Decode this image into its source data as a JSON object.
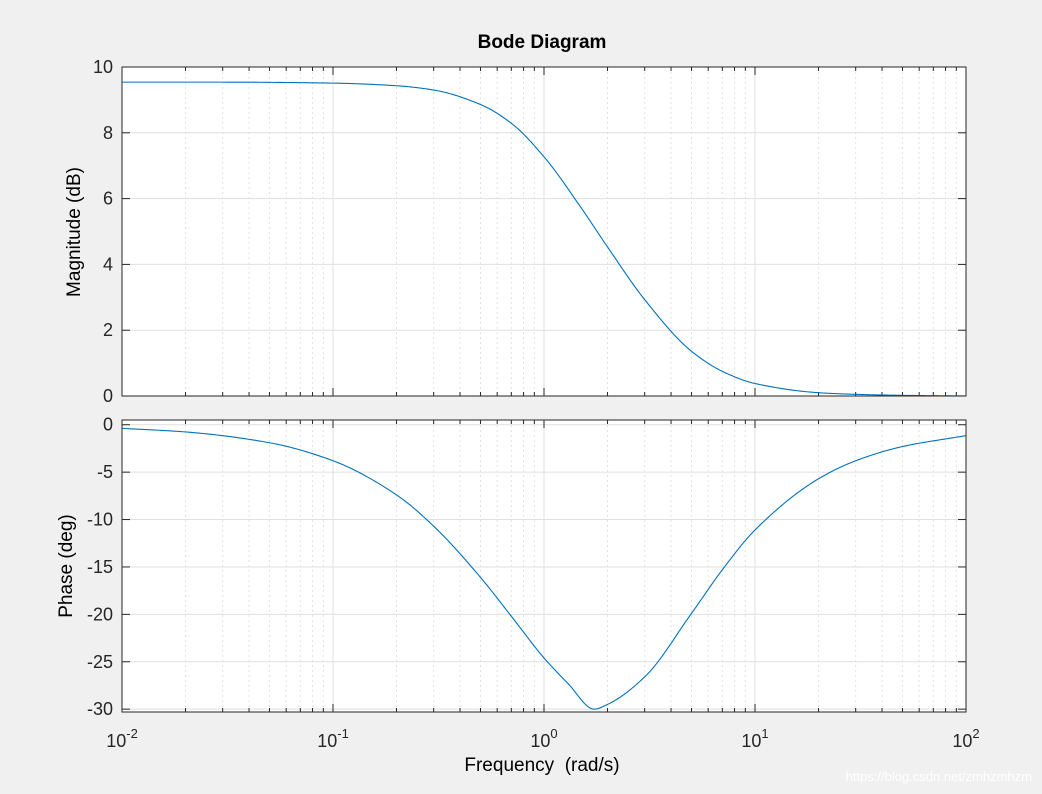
{
  "watermark": "https://blog.csdn.net/zmhzmhzm",
  "chart_data": {
    "type": "line",
    "title": "Bode Diagram",
    "xlabel": "Frequency  (rad/s)",
    "xscale": "log",
    "xlim": [
      0.01,
      100
    ],
    "x_ticks": [
      {
        "base": "10",
        "exp": "-2"
      },
      {
        "base": "10",
        "exp": "-1"
      },
      {
        "base": "10",
        "exp": "0"
      },
      {
        "base": "10",
        "exp": "1"
      },
      {
        "base": "10",
        "exp": "2"
      }
    ],
    "grid": true,
    "line_color": "#0072bd",
    "subplots": [
      {
        "name": "magnitude",
        "ylabel": "Magnitude (dB)",
        "ylim": [
          0,
          10
        ],
        "yticks": [
          0,
          2,
          4,
          6,
          8,
          10
        ],
        "ytick_labels": [
          "0",
          "2",
          "4",
          "6",
          "8",
          "10"
        ],
        "x": [
          0.01,
          0.03,
          0.1,
          0.2,
          0.3,
          0.5,
          0.7,
          1,
          1.5,
          2,
          3,
          5,
          7,
          10,
          20,
          30,
          50,
          100
        ],
        "y": [
          9.54,
          9.54,
          9.51,
          9.43,
          9.3,
          8.86,
          8.29,
          7.27,
          5.72,
          4.53,
          2.93,
          1.36,
          0.75,
          0.38,
          0.1,
          0.05,
          0.02,
          0.0
        ]
      },
      {
        "name": "phase",
        "ylabel": "Phase (deg)",
        "ylim": [
          -30.3,
          0.5
        ],
        "yticks": [
          0,
          -5,
          -10,
          -15,
          -20,
          -25,
          -30
        ],
        "ytick_labels": [
          "0",
          "-5",
          "-10",
          "-15",
          "-20",
          "-25",
          "-30"
        ],
        "x": [
          0.01,
          0.02,
          0.05,
          0.1,
          0.2,
          0.3,
          0.5,
          0.7,
          1,
          1.3,
          1.73,
          2,
          3,
          5,
          7,
          10,
          20,
          30,
          50,
          100
        ],
        "y": [
          -0.38,
          -0.76,
          -1.9,
          -3.8,
          -7.4,
          -10.7,
          -16.1,
          -20.2,
          -24.6,
          -27.3,
          -30.0,
          -29.5,
          -26.6,
          -19.9,
          -15.3,
          -11.1,
          -5.7,
          -3.8,
          -2.3,
          -1.15
        ]
      }
    ]
  }
}
